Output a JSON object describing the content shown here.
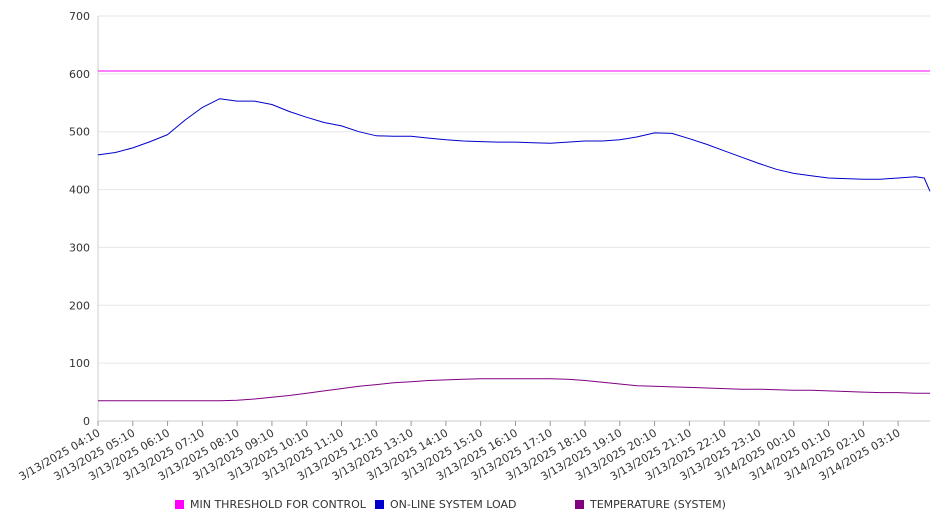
{
  "chart_data": {
    "type": "line",
    "title": "",
    "xlabel": "",
    "ylabel": "",
    "ylim": [
      0,
      700
    ],
    "yticks": [
      0,
      100,
      200,
      300,
      400,
      500,
      600,
      700
    ],
    "grid": true,
    "legend_position": "bottom",
    "x_tick_labels": [
      "3/13/2025 04:10",
      "3/13/2025 05:10",
      "3/13/2025 06:10",
      "3/13/2025 07:10",
      "3/13/2025 08:10",
      "3/13/2025 09:10",
      "3/13/2025 10:10",
      "3/13/2025 11:10",
      "3/13/2025 12:10",
      "3/13/2025 13:10",
      "3/13/2025 14:10",
      "3/13/2025 15:10",
      "3/13/2025 16:10",
      "3/13/2025 17:10",
      "3/13/2025 18:10",
      "3/13/2025 19:10",
      "3/13/2025 20:10",
      "3/13/2025 21:10",
      "3/13/2025 22:10",
      "3/13/2025 23:10",
      "3/14/2025 00:10",
      "3/14/2025 01:10",
      "3/14/2025 02:10",
      "3/14/2025 03:10"
    ],
    "x": [
      "3/13/2025 04:10",
      "3/13/2025 04:40",
      "3/13/2025 05:10",
      "3/13/2025 05:40",
      "3/13/2025 06:10",
      "3/13/2025 06:40",
      "3/13/2025 07:10",
      "3/13/2025 07:40",
      "3/13/2025 08:10",
      "3/13/2025 08:40",
      "3/13/2025 09:10",
      "3/13/2025 09:40",
      "3/13/2025 10:10",
      "3/13/2025 10:40",
      "3/13/2025 11:10",
      "3/13/2025 11:40",
      "3/13/2025 12:10",
      "3/13/2025 12:40",
      "3/13/2025 13:10",
      "3/13/2025 13:40",
      "3/13/2025 14:10",
      "3/13/2025 14:40",
      "3/13/2025 15:10",
      "3/13/2025 15:40",
      "3/13/2025 16:10",
      "3/13/2025 16:40",
      "3/13/2025 17:10",
      "3/13/2025 17:40",
      "3/13/2025 18:10",
      "3/13/2025 18:40",
      "3/13/2025 19:10",
      "3/13/2025 19:40",
      "3/13/2025 20:10",
      "3/13/2025 20:40",
      "3/13/2025 21:10",
      "3/13/2025 21:40",
      "3/13/2025 22:10",
      "3/13/2025 22:40",
      "3/13/2025 23:10",
      "3/13/2025 23:40",
      "3/14/2025 00:10",
      "3/14/2025 00:40",
      "3/14/2025 01:10",
      "3/14/2025 01:40",
      "3/14/2025 02:10",
      "3/14/2025 02:40",
      "3/14/2025 03:10",
      "3/14/2025 03:40",
      "3/14/2025 03:55",
      "3/14/2025 04:05"
    ],
    "series": [
      {
        "name": "MIN THRESHOLD FOR CONTROL",
        "color": "#ff00ff",
        "values": [
          605,
          605,
          605,
          605,
          605,
          605,
          605,
          605,
          605,
          605,
          605,
          605,
          605,
          605,
          605,
          605,
          605,
          605,
          605,
          605,
          605,
          605,
          605,
          605,
          605,
          605,
          605,
          605,
          605,
          605,
          605,
          605,
          605,
          605,
          605,
          605,
          605,
          605,
          605,
          605,
          605,
          605,
          605,
          605,
          605,
          605,
          605,
          605,
          605,
          605
        ]
      },
      {
        "name": "ON-LINE SYSTEM LOAD",
        "color": "#0000cc",
        "values": [
          460,
          464,
          472,
          483,
          495,
          520,
          542,
          557,
          553,
          553,
          547,
          535,
          525,
          516,
          510,
          500,
          493,
          492,
          492,
          489,
          486,
          484,
          483,
          482,
          482,
          481,
          480,
          482,
          484,
          484,
          486,
          491,
          498,
          497,
          488,
          478,
          467,
          456,
          445,
          435,
          428,
          424,
          420,
          419,
          418,
          418,
          420,
          422,
          420,
          397
        ]
      },
      {
        "name": "TEMPERATURE (SYSTEM)",
        "color": "#800080",
        "values": [
          35,
          35,
          35,
          35,
          35,
          35,
          35,
          35,
          36,
          38,
          41,
          44,
          48,
          52,
          56,
          60,
          63,
          66,
          68,
          70,
          71,
          72,
          73,
          73,
          73,
          73,
          73,
          72,
          70,
          67,
          64,
          61,
          60,
          59,
          58,
          57,
          56,
          55,
          55,
          54,
          53,
          53,
          52,
          51,
          50,
          49,
          49,
          48,
          48,
          48
        ]
      }
    ]
  }
}
